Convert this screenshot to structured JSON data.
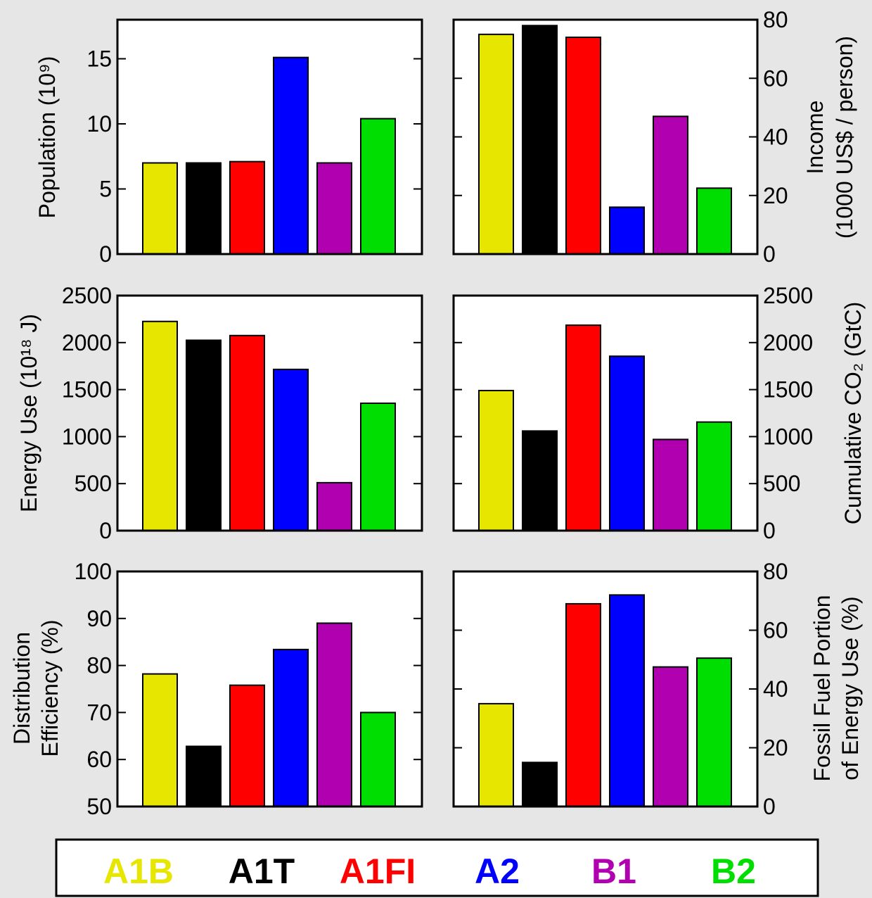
{
  "legend": {
    "entries": [
      {
        "label": "A1B",
        "color": "#e6e600"
      },
      {
        "label": "A1T",
        "color": "#000000"
      },
      {
        "label": "A1FI",
        "color": "#ff0000"
      },
      {
        "label": "A2",
        "color": "#0000ff"
      },
      {
        "label": "B1",
        "color": "#b000b0"
      },
      {
        "label": "B2",
        "color": "#00dd00"
      }
    ]
  },
  "chart_data": [
    {
      "type": "bar",
      "categories": [
        "A1B",
        "A1T",
        "A1FI",
        "A2",
        "B1",
        "B2"
      ],
      "values": [
        7.0,
        7.0,
        7.1,
        15.1,
        7.0,
        10.4
      ],
      "ylabel": "Population (10⁹)",
      "ylim": [
        0,
        18
      ],
      "yticks": [
        0,
        5,
        10,
        15
      ],
      "yaxis_side": "left",
      "xlabel": "",
      "title": "",
      "grid": false
    },
    {
      "type": "bar",
      "categories": [
        "A1B",
        "A1T",
        "A1FI",
        "A2",
        "B1",
        "B2"
      ],
      "values": [
        75,
        78,
        74,
        16,
        47,
        22.5
      ],
      "ylabel": "Income (1000 US$ / person)",
      "ylim": [
        0,
        80
      ],
      "yticks": [
        0,
        20,
        40,
        60,
        80
      ],
      "yaxis_side": "right",
      "xlabel": "",
      "title": "",
      "grid": false
    },
    {
      "type": "bar",
      "categories": [
        "A1B",
        "A1T",
        "A1FI",
        "A2",
        "B1",
        "B2"
      ],
      "values": [
        2225,
        2025,
        2075,
        1715,
        510,
        1355
      ],
      "ylabel": "Energy Use (10¹⁸ J)",
      "ylim": [
        0,
        2500
      ],
      "yticks": [
        0,
        500,
        1000,
        1500,
        2000,
        2500
      ],
      "yaxis_side": "left",
      "xlabel": "",
      "title": "",
      "grid": false
    },
    {
      "type": "bar",
      "categories": [
        "A1B",
        "A1T",
        "A1FI",
        "A2",
        "B1",
        "B2"
      ],
      "values": [
        1490,
        1060,
        2185,
        1855,
        970,
        1155
      ],
      "ylabel": "Cumulative CO₂ (GtC)",
      "ylim": [
        0,
        2500
      ],
      "yticks": [
        0,
        500,
        1000,
        1500,
        2000,
        2500
      ],
      "yaxis_side": "right",
      "xlabel": "",
      "title": "",
      "grid": false
    },
    {
      "type": "bar",
      "categories": [
        "A1B",
        "A1T",
        "A1FI",
        "A2",
        "B1",
        "B2"
      ],
      "values": [
        78.2,
        62.8,
        75.8,
        83.4,
        89.0,
        70.0
      ],
      "ylabel": "Distribution Efficiency (%)",
      "ylim": [
        50,
        100
      ],
      "yticks": [
        50,
        60,
        70,
        80,
        90,
        100
      ],
      "yaxis_side": "left",
      "xlabel": "",
      "title": "",
      "grid": false
    },
    {
      "type": "bar",
      "categories": [
        "A1B",
        "A1T",
        "A1FI",
        "A2",
        "B1",
        "B2"
      ],
      "values": [
        35,
        15,
        69,
        72,
        47.5,
        50.5
      ],
      "ylabel": "Fossil Fuel Portion of Energy Use (%)",
      "ylim": [
        0,
        80
      ],
      "yticks": [
        0,
        20,
        40,
        60,
        80
      ],
      "yaxis_side": "right",
      "xlabel": "",
      "title": "",
      "grid": false
    }
  ]
}
